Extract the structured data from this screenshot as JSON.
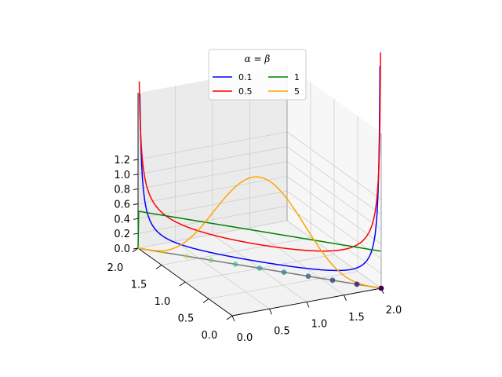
{
  "chart_data": {
    "type": "line",
    "projection": "3d",
    "grid": true,
    "legend": {
      "title": "α = β",
      "placement": "top-center",
      "columns": 2,
      "entries": [
        {
          "label": "0.1",
          "color": "#0000ff"
        },
        {
          "label": "1",
          "color": "#008000"
        },
        {
          "label": "0.5",
          "color": "#ff0000"
        },
        {
          "label": "5",
          "color": "#ffa500"
        }
      ]
    },
    "axes": {
      "x": {
        "range": [
          0,
          2
        ],
        "ticks": [
          "0.0",
          "0.5",
          "1.0",
          "1.5",
          "2.0"
        ],
        "tick_values": [
          0,
          0.5,
          1,
          1.5,
          2
        ]
      },
      "y": {
        "range": [
          0,
          2
        ],
        "ticks": [
          "0.0",
          "0.5",
          "1.0",
          "1.5",
          "2.0"
        ],
        "tick_values": [
          0,
          0.5,
          1,
          1.5,
          2
        ]
      },
      "z": {
        "range": [
          0,
          1.2
        ],
        "ticks": [
          "0.0",
          "0.2",
          "0.4",
          "0.6",
          "0.8",
          "1.0",
          "1.2"
        ],
        "tick_values": [
          0,
          0.2,
          0.4,
          0.6,
          0.8,
          1.0,
          1.2
        ]
      }
    },
    "series": [
      {
        "label": "0.1",
        "color": "#0000ff",
        "alpha": 0.1
      },
      {
        "label": "0.5",
        "color": "#ff0000",
        "alpha": 0.5
      },
      {
        "label": "1",
        "color": "#008000",
        "alpha": 1
      },
      {
        "label": "5",
        "color": "#ffa500",
        "alpha": 5
      }
    ],
    "base_curve": {
      "color": "#808080",
      "description": "simplex x + y = 2 at z = 0"
    },
    "points": {
      "count": 10,
      "colors": [
        "#fde725",
        "#b5de2b",
        "#6ece58",
        "#35b779",
        "#1f9e89",
        "#26828e",
        "#31688e",
        "#3e4989",
        "#482878",
        "#440154"
      ]
    }
  }
}
